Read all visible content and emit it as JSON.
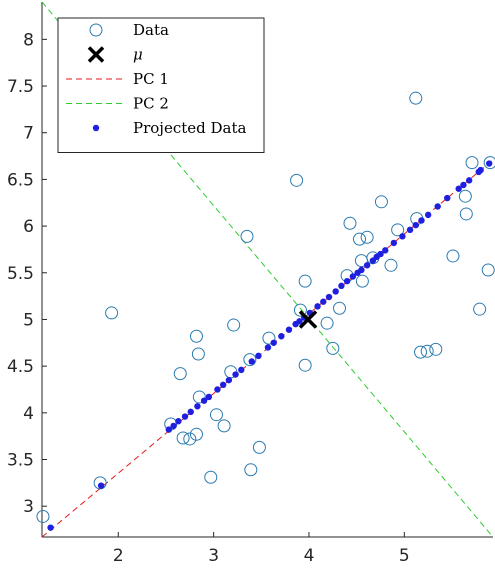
{
  "chart_data": {
    "type": "scatter",
    "xlim": [
      1.2,
      5.93
    ],
    "ylim": [
      2.67,
      8.4
    ],
    "xticks": [
      2,
      3,
      4,
      5
    ],
    "yticks": [
      3,
      3.5,
      4,
      4.5,
      5,
      5.5,
      6,
      6.5,
      7,
      7.5,
      8
    ],
    "xtick_labels": [
      "2",
      "3",
      "4",
      "5"
    ],
    "ytick_labels": [
      "3",
      "3.5",
      "4",
      "4.5",
      "5",
      "5.5",
      "6",
      "6.5",
      "7",
      "7.5",
      "8"
    ],
    "grid": false,
    "legend_position": "top-left",
    "legend": [
      {
        "label": "Data",
        "marker": "open-circle",
        "color": "#2a7ab0"
      },
      {
        "label": "μ",
        "marker": "x",
        "color": "#000000",
        "italic": true
      },
      {
        "label": "PC 1",
        "marker": "dashed-line",
        "color": "#e41a1c"
      },
      {
        "label": "PC 2",
        "marker": "dashed-line",
        "color": "#2ecc2e"
      },
      {
        "label": "Projected Data",
        "marker": "dot",
        "color": "#1f1fe0"
      }
    ],
    "series": [
      {
        "name": "Data",
        "points": [
          [
            1.21,
            2.89
          ],
          [
            1.81,
            3.25
          ],
          [
            1.93,
            5.07
          ],
          [
            2.55,
            3.88
          ],
          [
            2.65,
            4.42
          ],
          [
            2.68,
            3.73
          ],
          [
            2.75,
            3.72
          ],
          [
            2.82,
            3.77
          ],
          [
            2.82,
            4.82
          ],
          [
            2.84,
            4.63
          ],
          [
            2.85,
            4.17
          ],
          [
            2.97,
            3.31
          ],
          [
            3.03,
            3.98
          ],
          [
            3.11,
            3.86
          ],
          [
            3.18,
            4.44
          ],
          [
            3.21,
            4.94
          ],
          [
            3.35,
            5.89
          ],
          [
            3.38,
            4.57
          ],
          [
            3.39,
            3.39
          ],
          [
            3.48,
            3.63
          ],
          [
            3.58,
            4.8
          ],
          [
            3.87,
            6.49
          ],
          [
            3.91,
            5.1
          ],
          [
            3.96,
            4.51
          ],
          [
            3.96,
            5.41
          ],
          [
            4.19,
            4.96
          ],
          [
            4.25,
            4.69
          ],
          [
            4.32,
            5.12
          ],
          [
            4.4,
            5.47
          ],
          [
            4.43,
            6.03
          ],
          [
            4.53,
            5.86
          ],
          [
            4.55,
            5.63
          ],
          [
            4.56,
            5.41
          ],
          [
            4.61,
            5.88
          ],
          [
            4.67,
            5.66
          ],
          [
            4.76,
            6.26
          ],
          [
            4.86,
            5.58
          ],
          [
            4.93,
            5.96
          ],
          [
            5.12,
            7.37
          ],
          [
            5.13,
            6.08
          ],
          [
            5.17,
            4.65
          ],
          [
            5.24,
            4.66
          ],
          [
            5.33,
            4.68
          ],
          [
            5.51,
            5.68
          ],
          [
            5.64,
            6.32
          ],
          [
            5.65,
            6.13
          ],
          [
            5.71,
            6.68
          ],
          [
            5.79,
            5.11
          ],
          [
            5.88,
            5.53
          ],
          [
            5.9,
            6.68
          ]
        ]
      },
      {
        "name": "μ",
        "points": [
          [
            3.99,
            5.0
          ]
        ]
      },
      {
        "name": "PC 1",
        "line": [
          [
            1.2,
            2.67
          ],
          [
            5.93,
            6.71
          ]
        ]
      },
      {
        "name": "PC 2",
        "line": [
          [
            1.2,
            8.4
          ],
          [
            5.93,
            2.67
          ]
        ]
      },
      {
        "name": "Projected Data",
        "points": [
          [
            1.29,
            2.77
          ],
          [
            1.82,
            3.22
          ],
          [
            2.53,
            3.82
          ],
          [
            2.58,
            3.86
          ],
          [
            2.63,
            3.91
          ],
          [
            2.7,
            3.96
          ],
          [
            2.76,
            4.01
          ],
          [
            2.83,
            4.07
          ],
          [
            2.9,
            4.13
          ],
          [
            2.95,
            4.17
          ],
          [
            3.04,
            4.25
          ],
          [
            3.1,
            4.3
          ],
          [
            3.16,
            4.35
          ],
          [
            3.23,
            4.41
          ],
          [
            3.29,
            4.46
          ],
          [
            3.4,
            4.55
          ],
          [
            3.47,
            4.61
          ],
          [
            3.57,
            4.7
          ],
          [
            3.63,
            4.75
          ],
          [
            3.71,
            4.82
          ],
          [
            3.79,
            4.89
          ],
          [
            3.86,
            4.95
          ],
          [
            3.9,
            4.98
          ],
          [
            3.95,
            5.02
          ],
          [
            4.01,
            5.07
          ],
          [
            4.09,
            5.14
          ],
          [
            4.15,
            5.19
          ],
          [
            4.21,
            5.24
          ],
          [
            4.28,
            5.3
          ],
          [
            4.34,
            5.36
          ],
          [
            4.4,
            5.41
          ],
          [
            4.46,
            5.46
          ],
          [
            4.51,
            5.5
          ],
          [
            4.55,
            5.53
          ],
          [
            4.61,
            5.58
          ],
          [
            4.67,
            5.63
          ],
          [
            4.71,
            5.67
          ],
          [
            4.75,
            5.7
          ],
          [
            4.8,
            5.74
          ],
          [
            4.89,
            5.82
          ],
          [
            4.98,
            5.89
          ],
          [
            5.06,
            5.96
          ],
          [
            5.12,
            6.01
          ],
          [
            5.18,
            6.06
          ],
          [
            5.25,
            6.12
          ],
          [
            5.35,
            6.21
          ],
          [
            5.45,
            6.3
          ],
          [
            5.57,
            6.4
          ],
          [
            5.62,
            6.44
          ],
          [
            5.68,
            6.49
          ],
          [
            5.78,
            6.58
          ],
          [
            5.8,
            6.6
          ],
          [
            5.89,
            6.67
          ]
        ]
      }
    ]
  }
}
